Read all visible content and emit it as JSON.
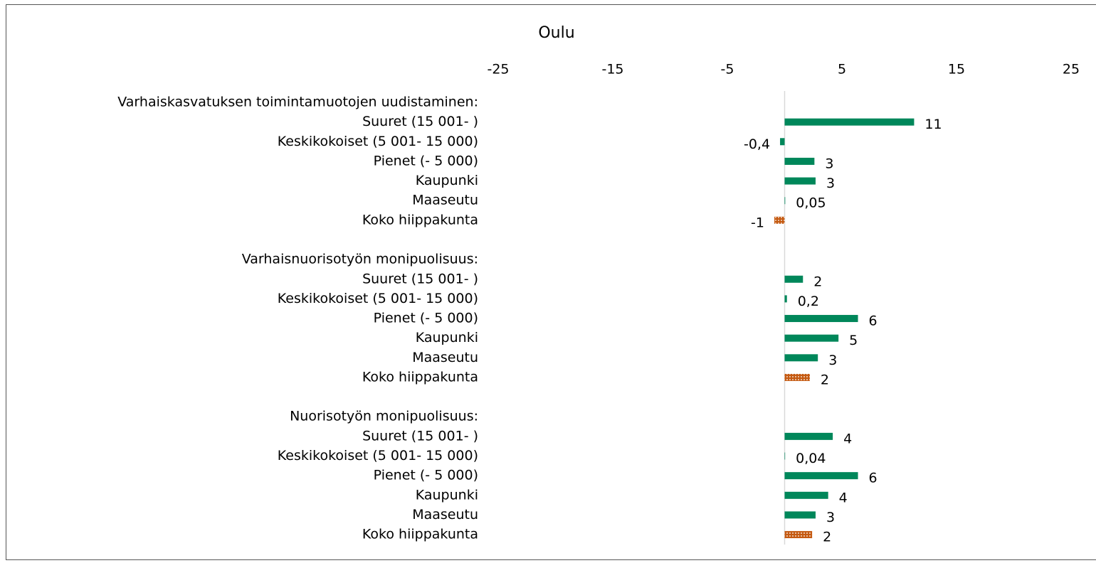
{
  "chart_data": {
    "type": "hbar",
    "title": "Oulu",
    "categories": [
      "Varhaiskasvatuksen toimintamuotojen uudistaminen:",
      "Suuret (15 001- )",
      "Keskikokoiset (5 001- 15 000)",
      "Pienet (- 5 000)",
      "Kaupunki",
      "Maaseutu",
      "Koko hiippakunta",
      null,
      "Varhaisnuorisotyön monipuolisuus:",
      "Suuret (15 001- )",
      "Keskikokoiset (5 001- 15 000)",
      "Pienet (- 5 000)",
      "Kaupunki",
      "Maaseutu",
      "Koko hiippakunta",
      null,
      "Nuorisotyön monipuolisuus:",
      "Suuret (15 001- )",
      "Keskikokoiset (5 001- 15 000)",
      "Pienet (- 5 000)",
      "Kaupunki",
      "Maaseutu",
      "Koko hiippakunta"
    ],
    "values": [
      null,
      11.3,
      -0.4,
      2.6,
      2.7,
      0.05,
      -0.9,
      null,
      null,
      1.6,
      0.2,
      6.4,
      4.7,
      2.9,
      2.2,
      null,
      null,
      4.2,
      0.04,
      6.4,
      3.8,
      2.7,
      2.4
    ],
    "value_labels": [
      null,
      "11",
      "-0,4",
      "3",
      "3",
      "0,05",
      "-1",
      null,
      null,
      "2",
      "0,2",
      "6",
      "5",
      "3",
      "2",
      null,
      null,
      "4",
      "0,04",
      "6",
      "4",
      "3",
      "2"
    ],
    "colors": [
      null,
      "#00875a",
      "#00875a",
      "#00875a",
      "#00875a",
      "#00875a",
      "#c55a11",
      null,
      null,
      "#00875a",
      "#00875a",
      "#00875a",
      "#00875a",
      "#00875a",
      "#c55a11",
      null,
      null,
      "#00875a",
      "#00875a",
      "#00875a",
      "#00875a",
      "#00875a",
      "#c55a11"
    ],
    "xlim": [
      -25,
      25
    ],
    "xticks": [
      -25,
      -15,
      -5,
      5,
      15,
      25
    ]
  }
}
